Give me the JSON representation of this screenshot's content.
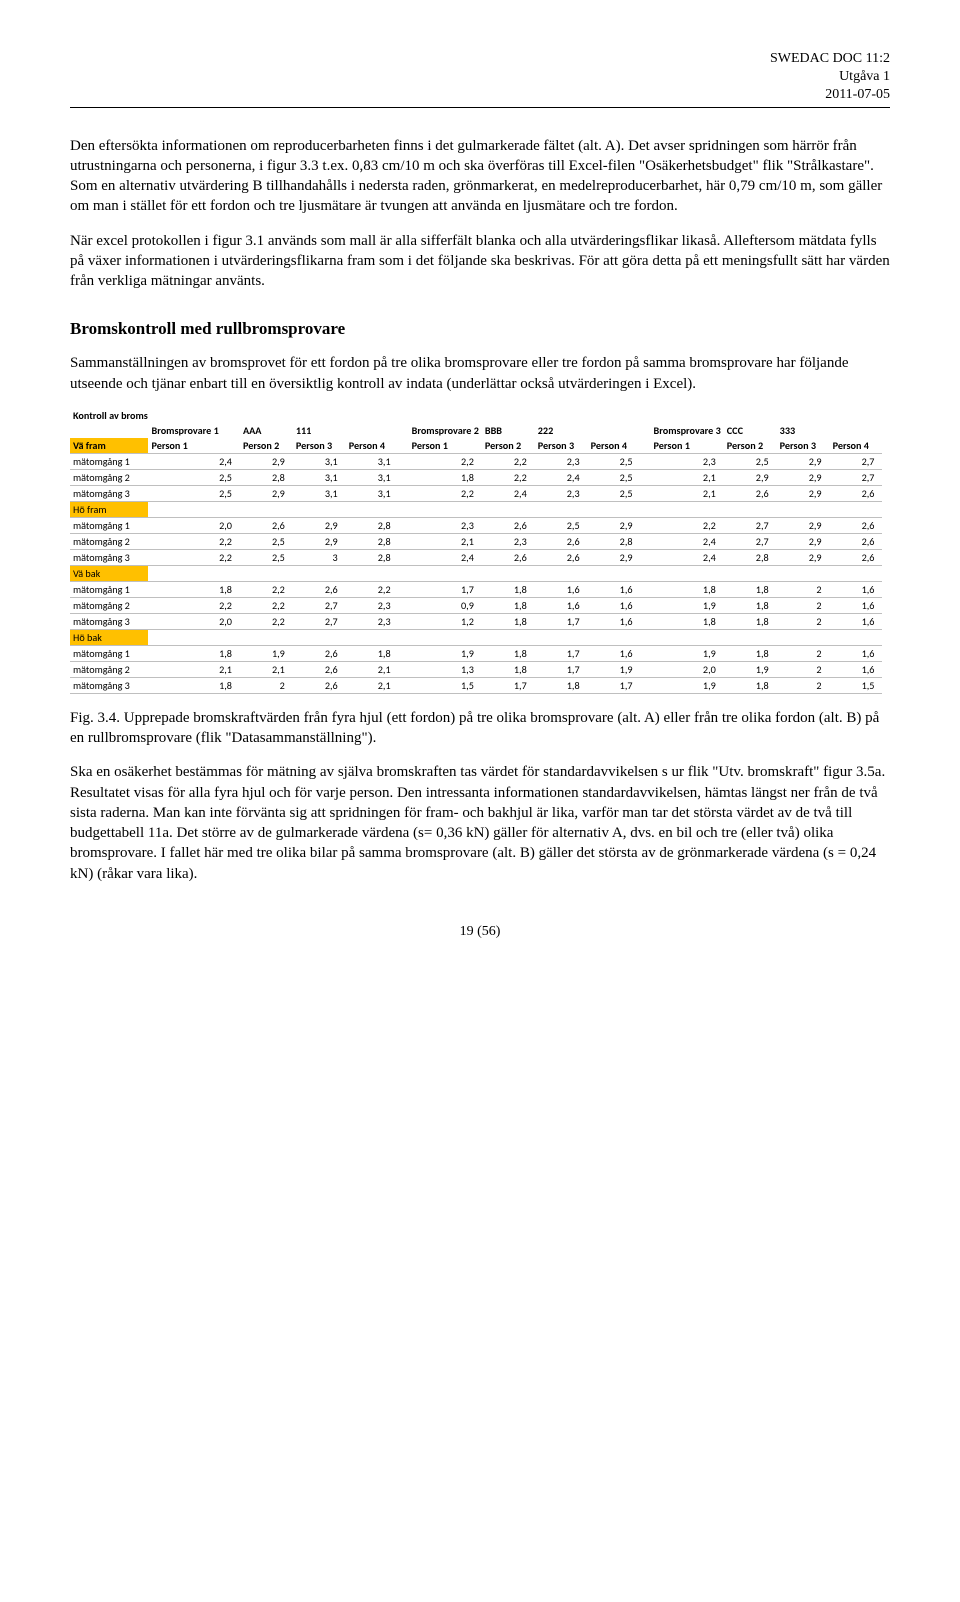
{
  "header": {
    "doc": "SWEDAC DOC 11:2",
    "edition": "Utgåva 1",
    "date": "2011-07-05"
  },
  "paragraphs": {
    "p1": "Den eftersökta informationen om reproducerbarheten finns i det gulmarkerade fältet (alt. A). Det avser spridningen som härrör från utrustningarna och personerna, i figur 3.3 t.ex. 0,83 cm/10 m och ska överföras till Excel-filen \"Osäkerhetsbudget\" flik \"Strålkastare\". Som en alternativ utvärdering B tillhandahålls i nedersta raden, grönmarkerat, en medelreproducerbarhet, här 0,79 cm/10 m, som gäller om man i stället för ett fordon och tre ljusmätare är tvungen att använda en ljusmätare och tre fordon.",
    "p2": "När excel protokollen i figur 3.1 används som mall är alla sifferfält blanka och alla utvärderingsflikar likaså. Alleftersom mätdata fylls på växer informationen i utvärderingsflikarna fram som i det följande ska beskrivas. För att göra detta på ett meningsfullt sätt har värden från verkliga mätningar använts.",
    "h2": "Bromskontroll med rullbromsprovare",
    "p3": "Sammanställningen av bromsprovet för ett fordon på tre olika bromsprovare eller tre fordon på samma bromsprovare har följande utseende och tjänar enbart till en översiktlig kontroll av indata (underlättar också utvärderingen i Excel).",
    "caption": "Fig. 3.4. Upprepade bromskraftvärden från fyra hjul (ett fordon) på tre olika bromsprovare (alt. A) eller från tre olika fordon (alt. B) på en rullbromsprovare (flik \"Datasammanställning\").",
    "p4": "Ska en osäkerhet bestämmas för mätning av själva bromskraften tas värdet för standardavvikelsen s ur flik \"Utv. bromskraft\" figur 3.5a. Resultatet visas för alla fyra hjul och för varje person. Den intressanta informationen standardavvikelsen, hämtas längst ner från de två sista raderna. Man kan inte förvänta sig att spridningen för fram- och bakhjul är lika, varför man tar det största värdet av de två till budgettabell 11a. Det större av de gulmarkerade värdena (s= 0,36 kN) gäller för alternativ A, dvs. en bil och tre (eller två) olika bromsprovare. I fallet här med tre olika bilar på samma bromsprovare (alt. B) gäller det största av de grönmarkerade värdena (s = 0,24 kN) (råkar vara lika).",
    "pagenum": "19 (56)"
  },
  "table": {
    "title": "Kontroll av broms",
    "group_label": "Bromsprovare",
    "groups": [
      {
        "n": "1",
        "brand": "AAA",
        "model": "111"
      },
      {
        "n": "2",
        "brand": "BBB",
        "model": "222"
      },
      {
        "n": "3",
        "brand": "CCC",
        "model": "333"
      }
    ],
    "persons": [
      "Person 1",
      "Person 2",
      "Person 3",
      "Person 4"
    ],
    "sections": [
      {
        "label": "Vä fram",
        "rows": [
          {
            "label": "mätomgång 1",
            "v": [
              [
                "2,4",
                "2,9",
                "3,1",
                "3,1"
              ],
              [
                "2,2",
                "2,2",
                "2,3",
                "2,5"
              ],
              [
                "2,3",
                "2,5",
                "2,9",
                "2,7"
              ]
            ]
          },
          {
            "label": "mätomgång 2",
            "v": [
              [
                "2,5",
                "2,8",
                "3,1",
                "3,1"
              ],
              [
                "1,8",
                "2,2",
                "2,4",
                "2,5"
              ],
              [
                "2,1",
                "2,9",
                "2,9",
                "2,7"
              ]
            ]
          },
          {
            "label": "mätomgång 3",
            "v": [
              [
                "2,5",
                "2,9",
                "3,1",
                "3,1"
              ],
              [
                "2,2",
                "2,4",
                "2,3",
                "2,5"
              ],
              [
                "2,1",
                "2,6",
                "2,9",
                "2,6"
              ]
            ]
          }
        ]
      },
      {
        "label": "Hö fram",
        "rows": [
          {
            "label": "mätomgång 1",
            "v": [
              [
                "2,0",
                "2,6",
                "2,9",
                "2,8"
              ],
              [
                "2,3",
                "2,6",
                "2,5",
                "2,9"
              ],
              [
                "2,2",
                "2,7",
                "2,9",
                "2,6"
              ]
            ]
          },
          {
            "label": "mätomgång 2",
            "v": [
              [
                "2,2",
                "2,5",
                "2,9",
                "2,8"
              ],
              [
                "2,1",
                "2,3",
                "2,6",
                "2,8"
              ],
              [
                "2,4",
                "2,7",
                "2,9",
                "2,6"
              ]
            ]
          },
          {
            "label": "mätomgång 3",
            "v": [
              [
                "2,2",
                "2,5",
                "3",
                "2,8"
              ],
              [
                "2,4",
                "2,6",
                "2,6",
                "2,9"
              ],
              [
                "2,4",
                "2,8",
                "2,9",
                "2,6"
              ]
            ]
          }
        ]
      },
      {
        "label": "Vä bak",
        "rows": [
          {
            "label": "mätomgång 1",
            "v": [
              [
                "1,8",
                "2,2",
                "2,6",
                "2,2"
              ],
              [
                "1,7",
                "1,8",
                "1,6",
                "1,6"
              ],
              [
                "1,8",
                "1,8",
                "2",
                "1,6"
              ]
            ]
          },
          {
            "label": "mätomgång 2",
            "v": [
              [
                "2,2",
                "2,2",
                "2,7",
                "2,3"
              ],
              [
                "0,9",
                "1,8",
                "1,6",
                "1,6"
              ],
              [
                "1,9",
                "1,8",
                "2",
                "1,6"
              ]
            ]
          },
          {
            "label": "mätomgång 3",
            "v": [
              [
                "2,0",
                "2,2",
                "2,7",
                "2,3"
              ],
              [
                "1,2",
                "1,8",
                "1,7",
                "1,6"
              ],
              [
                "1,8",
                "1,8",
                "2",
                "1,6"
              ]
            ]
          }
        ]
      },
      {
        "label": "Hö bak",
        "rows": [
          {
            "label": "mätomgång 1",
            "v": [
              [
                "1,8",
                "1,9",
                "2,6",
                "1,8"
              ],
              [
                "1,9",
                "1,8",
                "1,7",
                "1,6"
              ],
              [
                "1,9",
                "1,8",
                "2",
                "1,6"
              ]
            ]
          },
          {
            "label": "mätomgång 2",
            "v": [
              [
                "2,1",
                "2,1",
                "2,6",
                "2,1"
              ],
              [
                "1,3",
                "1,8",
                "1,7",
                "1,9"
              ],
              [
                "2,0",
                "1,9",
                "2",
                "1,6"
              ]
            ]
          },
          {
            "label": "mätomgång 3",
            "v": [
              [
                "1,8",
                "2",
                "2,6",
                "2,1"
              ],
              [
                "1,5",
                "1,7",
                "1,8",
                "1,7"
              ],
              [
                "1,9",
                "1,8",
                "2",
                "1,5"
              ]
            ]
          }
        ]
      }
    ]
  }
}
